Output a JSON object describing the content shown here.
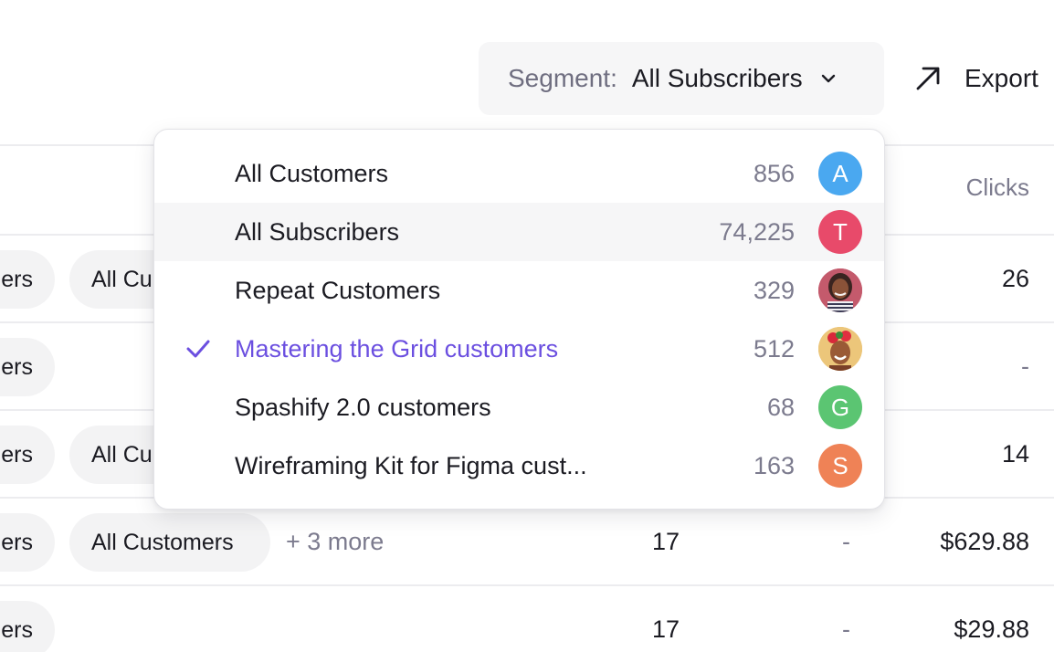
{
  "toolbar": {
    "segment_prefix": "Segment:",
    "segment_value": "All Subscribers",
    "export_label": "Export"
  },
  "table": {
    "column_header": "Clicks",
    "rows": [
      {
        "tag_left": "ers",
        "tag2": "All Cu",
        "clicks": "26"
      },
      {
        "tag_left": "ers",
        "clicks": "-"
      },
      {
        "tag_left": "ers",
        "tag2": "All Cu",
        "clicks": "14"
      },
      {
        "tag_left": "ers",
        "tag2": "All Customers",
        "more": "+ 3 more",
        "count": "17",
        "dash": "-",
        "clicks": "$629.88"
      },
      {
        "tag_left": "ers",
        "count": "17",
        "dash": "-",
        "clicks": "$29.88"
      }
    ]
  },
  "dropdown": {
    "items": [
      {
        "label": "All Customers",
        "count": "856",
        "avatar": "A",
        "avatar_color": "#4aa8f0"
      },
      {
        "label": "All Subscribers",
        "count": "74,225",
        "avatar": "T",
        "avatar_color": "#e84a6a"
      },
      {
        "label": "Repeat Customers",
        "count": "329",
        "avatar": "",
        "avatar_color": "#c85a70"
      },
      {
        "label": "Mastering the Grid customers",
        "count": "512",
        "avatar": "",
        "avatar_color": "#e8c070"
      },
      {
        "label": "Spashify 2.0 customers",
        "count": "68",
        "avatar": "G",
        "avatar_color": "#5bc572"
      },
      {
        "label": "Wireframing Kit for Figma cust...",
        "count": "163",
        "avatar": "S",
        "avatar_color": "#ef8256"
      }
    ]
  },
  "colors": {
    "accent": "#6b4fe0",
    "muted": "#7c7b8e"
  }
}
